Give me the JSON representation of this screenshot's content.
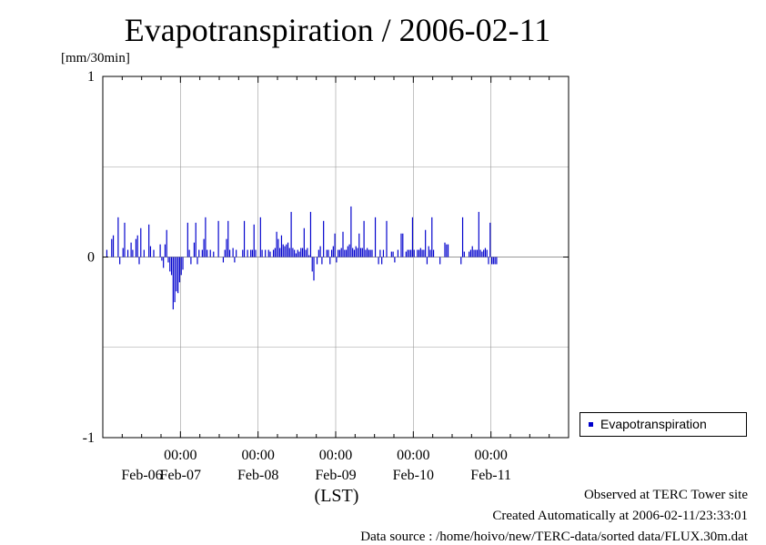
{
  "chart_data": {
    "type": "bar",
    "title": "Evapotranspiration / 2006-02-11",
    "ylabel": "[mm/30min]",
    "xlabel": "(LST)",
    "ylim": [
      -1,
      1
    ],
    "yticks": [
      "1",
      "0",
      "-1"
    ],
    "xticks": [
      {
        "time": "00:00",
        "date": "Feb-07"
      },
      {
        "time": "00:00",
        "date": "Feb-08"
      },
      {
        "time": "00:00",
        "date": "Feb-09"
      },
      {
        "time": "00:00",
        "date": "Feb-10"
      },
      {
        "time": "00:00",
        "date": "Feb-11"
      }
    ],
    "first_date_label": "Feb-06",
    "x_range": [
      "2006-02-06 00:00",
      "2006-02-12 00:00"
    ],
    "grid": true,
    "legend_position": "right",
    "series": [
      {
        "name": "Evapotranspiration",
        "color": "#0000cc",
        "interval_minutes": 30,
        "start": "2006-02-06 00:00",
        "values": [
          0,
          0,
          0.04,
          0,
          0,
          0.1,
          0.12,
          0,
          0,
          0.22,
          -0.04,
          0,
          0.05,
          0.19,
          0,
          0.04,
          0,
          0.08,
          0.04,
          0,
          0.1,
          0.12,
          -0.04,
          0.16,
          0,
          0.04,
          0,
          0,
          0.18,
          0.06,
          0,
          0.04,
          0,
          0,
          0,
          0.07,
          -0.02,
          -0.06,
          0.07,
          0.15,
          -0.03,
          -0.08,
          -0.1,
          -0.29,
          -0.25,
          -0.19,
          -0.2,
          -0.14,
          -0.1,
          -0.07,
          0,
          0,
          0.19,
          0.04,
          -0.04,
          0,
          0.08,
          0.19,
          -0.04,
          0.04,
          0,
          0.04,
          0.1,
          0.22,
          0.04,
          0,
          0.04,
          0,
          0.03,
          0,
          0,
          0.2,
          0,
          0,
          -0.03,
          0.04,
          0.1,
          0.2,
          0.04,
          0,
          0.05,
          -0.03,
          0.04,
          0,
          0,
          0,
          0.04,
          0.2,
          0,
          0.04,
          0,
          0.04,
          0.04,
          0.18,
          0.04,
          0,
          0,
          0.22,
          0.04,
          0,
          0.04,
          0,
          0.04,
          0.03,
          0,
          0.04,
          0.05,
          0.14,
          0.1,
          0.05,
          0.12,
          0.07,
          0.06,
          0.07,
          0.08,
          0.05,
          0.25,
          0.05,
          0.04,
          0.02,
          0.04,
          0.03,
          0.05,
          0.05,
          0.16,
          0.04,
          0.05,
          0.01,
          0.25,
          -0.08,
          -0.13,
          0,
          -0.04,
          0.04,
          0.06,
          -0.04,
          0.2,
          0,
          0.04,
          0.04,
          -0.04,
          0.04,
          0.06,
          0.13,
          -0.03,
          0.04,
          0.04,
          0.05,
          0.14,
          0.04,
          0.04,
          0.06,
          0.07,
          0.28,
          0.05,
          0.04,
          0.06,
          0.05,
          0.13,
          0.05,
          0.05,
          0.2,
          0.04,
          0.05,
          0.04,
          0.04,
          0.04,
          0,
          0.22,
          0,
          -0.04,
          0.04,
          -0.04,
          0.04,
          0,
          0.2,
          0,
          0,
          0.03,
          0.03,
          -0.03,
          0,
          0.04,
          0,
          0.13,
          0.13,
          0,
          0.03,
          0.04,
          0.04,
          0.04,
          0.22,
          0.04,
          0,
          0.04,
          0.04,
          0.05,
          0.04,
          0.04,
          0.15,
          -0.04,
          0.06,
          0.04,
          0.22,
          0.04,
          0,
          0,
          0,
          -0.04,
          0,
          0,
          0.08,
          0.07,
          0.07,
          0,
          0,
          0,
          0,
          0,
          0,
          0,
          -0.04,
          0.22,
          0.03,
          0,
          0,
          0.03,
          0.04,
          0.06,
          0.04,
          0.04,
          0.04,
          0.25,
          0.04,
          0.03,
          0.04,
          0.05,
          0.04,
          -0.04,
          0.19,
          -0.04,
          -0.04,
          -0.04,
          -0.04
        ]
      }
    ]
  },
  "legend": {
    "label": "Evapotranspiration"
  },
  "footer": {
    "line1": "Observed at TERC Tower site",
    "line2": "Created Automatically at 2006-02-11/23:33:01",
    "line3": "Data source : /home/hoivo/new/TERC-data/sorted  data/FLUX.30m.dat"
  }
}
